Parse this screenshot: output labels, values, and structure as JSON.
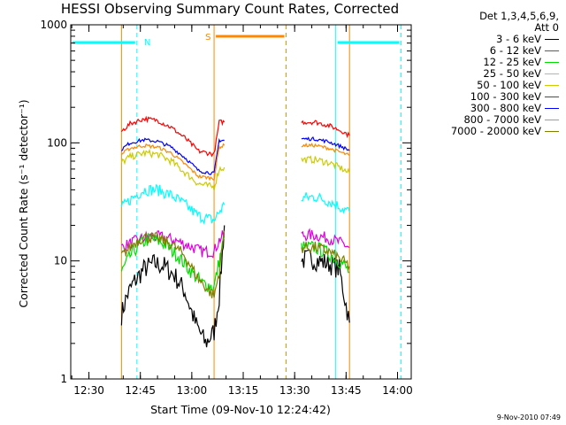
{
  "chart_data": {
    "type": "line",
    "title": "HESSI Observing Summary Count Rates, Corrected",
    "xlabel": "Start Time (09-Nov-10 12:24:42)",
    "ylabel": "Corrected Count Rate (s⁻¹ detector⁻¹)",
    "y_scale": "log",
    "ylim": [
      1,
      1000
    ],
    "xlim": [
      "12:24:42",
      "14:04:00"
    ],
    "x_ticks": [
      "12:30",
      "12:45",
      "13:00",
      "13:15",
      "13:30",
      "13:45",
      "14:00"
    ],
    "y_ticks": [
      "1",
      "10",
      "100",
      "1000"
    ],
    "legend": {
      "placement": "right",
      "header": [
        "Det 1,3,4,5,6,9,",
        "Att 0"
      ],
      "entries": [
        {
          "label": "3 - 6 keV",
          "color": "#000000"
        },
        {
          "label": "6 - 12 keV",
          "color": "#dd00dd"
        },
        {
          "label": "12 - 25 keV",
          "color": "#00dd00"
        },
        {
          "label": "25 - 50 keV",
          "color": "#00ffff"
        },
        {
          "label": "50 - 100 keV",
          "color": "#cccc00"
        },
        {
          "label": "100 - 300 keV",
          "color": "#ff0000"
        },
        {
          "label": "300 - 800 keV",
          "color": "#0000ff"
        },
        {
          "label": "800 - 7000 keV",
          "color": "#ff8800"
        },
        {
          "label": "7000 - 20000 keV",
          "color": "#808000"
        }
      ]
    },
    "series": [
      {
        "label": "3 - 6 keV",
        "color": "#000000",
        "segments": [
          {
            "x": [
              "12:39:30",
              "12:41:00",
              "12:43:00",
              "12:46:00",
              "12:49:00",
              "12:52:00",
              "12:55:00",
              "12:58:00",
              "13:01:00",
              "13:04:00",
              "13:06:30",
              "13:08:00",
              "13:09:30"
            ],
            "y": [
              3.5,
              5,
              6.5,
              8.5,
              9.5,
              9,
              7.5,
              5.5,
              3,
              2,
              2.5,
              5,
              20
            ]
          },
          {
            "x": [
              "13:32:00",
              "13:34:00",
              "13:37:00",
              "13:40:00",
              "13:43:00",
              "13:46:00"
            ],
            "y": [
              10,
              10.5,
              10,
              9.5,
              8.5,
              3
            ]
          }
        ]
      },
      {
        "label": "6 - 12 keV",
        "color": "#dd00dd",
        "segments": [
          {
            "x": [
              "12:39:30",
              "12:43:00",
              "12:47:00",
              "12:51:00",
              "12:55:00",
              "12:59:00",
              "13:03:00",
              "13:06:30",
              "13:08:00",
              "13:09:30"
            ],
            "y": [
              13,
              14.5,
              16,
              16,
              15,
              13.5,
              12,
              12,
              15,
              17
            ]
          },
          {
            "x": [
              "13:32:00",
              "13:36:00",
              "13:40:00",
              "13:44:00",
              "13:46:00"
            ],
            "y": [
              16.5,
              16.5,
              15.5,
              14,
              13
            ]
          }
        ]
      },
      {
        "label": "12 - 25 keV",
        "color": "#00dd00",
        "segments": [
          {
            "x": [
              "12:39:30",
              "12:42:00",
              "12:45:00",
              "12:48:00",
              "12:52:00",
              "12:56:00",
              "13:00:00",
              "13:03:00",
              "13:06:30",
              "13:08:00",
              "13:09:30"
            ],
            "y": [
              8,
              11,
              14,
              15.5,
              14,
              11,
              8,
              6.5,
              6,
              10,
              16
            ]
          },
          {
            "x": [
              "13:32:00",
              "13:36:00",
              "13:40:00",
              "13:44:00",
              "13:46:00"
            ],
            "y": [
              13,
              13,
              11.5,
              9.5,
              8
            ]
          }
        ]
      },
      {
        "label": "25 - 50 keV",
        "color": "#00ffff",
        "segments": [
          {
            "x": [
              "12:39:30",
              "12:42:00",
              "12:46:00",
              "12:50:00",
              "12:54:00",
              "12:58:00",
              "13:02:00",
              "13:06:30",
              "13:08:00",
              "13:09:30"
            ],
            "y": [
              28,
              33,
              40,
              40,
              36,
              30,
              24,
              22,
              26,
              30
            ]
          },
          {
            "x": [
              "13:32:00",
              "13:36:00",
              "13:40:00",
              "13:44:00",
              "13:46:00"
            ],
            "y": [
              34,
              35,
              32,
              28,
              26
            ]
          }
        ]
      },
      {
        "label": "50 - 100 keV",
        "color": "#cccc00",
        "segments": [
          {
            "x": [
              "12:39:30",
              "12:42:00",
              "12:46:00",
              "12:50:00",
              "12:54:00",
              "12:58:00",
              "13:02:00",
              "13:06:30",
              "13:08:00",
              "13:09:30"
            ],
            "y": [
              68,
              76,
              82,
              80,
              70,
              56,
              45,
              42,
              60,
              62
            ]
          },
          {
            "x": [
              "13:32:00",
              "13:36:00",
              "13:40:00",
              "13:44:00",
              "13:46:00"
            ],
            "y": [
              72,
              72,
              68,
              60,
              55
            ]
          }
        ]
      },
      {
        "label": "100 - 300 keV",
        "color": "#ff0000",
        "segments": [
          {
            "x": [
              "12:39:30",
              "12:42:00",
              "12:46:00",
              "12:50:00",
              "12:54:00",
              "12:58:00",
              "13:02:00",
              "13:06:30",
              "13:08:00",
              "13:09:30"
            ],
            "y": [
              125,
              145,
              160,
              155,
              135,
              110,
              85,
              80,
              150,
              150
            ]
          },
          {
            "x": [
              "13:32:00",
              "13:36:00",
              "13:40:00",
              "13:44:00",
              "13:46:00"
            ],
            "y": [
              150,
              150,
              140,
              125,
              115
            ]
          }
        ]
      },
      {
        "label": "300 - 800 keV",
        "color": "#0000ff",
        "segments": [
          {
            "x": [
              "12:39:30",
              "12:42:00",
              "12:46:00",
              "12:50:00",
              "12:54:00",
              "12:58:00",
              "13:02:00",
              "13:06:30",
              "13:08:00",
              "13:09:30"
            ],
            "y": [
              88,
              100,
              106,
              103,
              92,
              75,
              58,
              55,
              105,
              105
            ]
          },
          {
            "x": [
              "13:32:00",
              "13:36:00",
              "13:40:00",
              "13:44:00",
              "13:46:00"
            ],
            "y": [
              108,
              108,
              102,
              92,
              86
            ]
          }
        ]
      },
      {
        "label": "800 - 7000 keV",
        "color": "#ff8800",
        "segments": [
          {
            "x": [
              "12:39:30",
              "12:42:00",
              "12:46:00",
              "12:50:00",
              "12:54:00",
              "12:58:00",
              "13:02:00",
              "13:06:30",
              "13:08:00",
              "13:09:30"
            ],
            "y": [
              80,
              90,
              95,
              92,
              82,
              66,
              52,
              50,
              92,
              95
            ]
          },
          {
            "x": [
              "13:32:00",
              "13:36:00",
              "13:40:00",
              "13:44:00",
              "13:46:00"
            ],
            "y": [
              95,
              95,
              90,
              82,
              78
            ]
          }
        ]
      },
      {
        "label": "7000 - 20000 keV",
        "color": "#808000",
        "segments": [
          {
            "x": [
              "12:39:30",
              "12:43:00",
              "12:46:00",
              "12:50:00",
              "12:54:00",
              "12:58:00",
              "13:02:00",
              "13:06:30",
              "13:08:00",
              "13:09:30"
            ],
            "y": [
              11,
              14,
              16,
              15.5,
              14,
              11,
              7,
              5,
              8,
              18
            ]
          },
          {
            "x": [
              "13:32:00",
              "13:36:00",
              "13:40:00",
              "13:44:00",
              "13:46:00"
            ],
            "y": [
              13,
              13,
              12,
              10,
              9
            ]
          }
        ]
      }
    ],
    "vertical_markers": [
      {
        "x": "12:24:42",
        "color": "#00ffff",
        "style": "solid"
      },
      {
        "x": "12:44:00",
        "color": "#00ffff",
        "style": "dashed"
      },
      {
        "x": "13:42:00",
        "color": "#00ffff",
        "style": "solid"
      },
      {
        "x": "14:01:00",
        "color": "#00ffff",
        "style": "dashed"
      },
      {
        "x": "12:39:30",
        "color": "#ff8800",
        "style": "solid"
      },
      {
        "x": "13:06:30",
        "color": "#ff8800",
        "style": "solid"
      },
      {
        "x": "13:27:30",
        "color": "#ff8800",
        "style": "dashed"
      },
      {
        "x": "13:46:00",
        "color": "#ff8800",
        "style": "solid"
      }
    ],
    "intervals": [
      {
        "label": "N",
        "color": "#00ffff",
        "ranges": [
          [
            "12:24:42",
            "12:44:00"
          ],
          [
            "13:42:00",
            "14:01:00"
          ]
        ]
      },
      {
        "label": "S",
        "color": "#ff8800",
        "ranges": [
          [
            "13:06:30",
            "13:27:30"
          ]
        ]
      }
    ]
  },
  "stamp": "9-Nov-2010 07:49"
}
